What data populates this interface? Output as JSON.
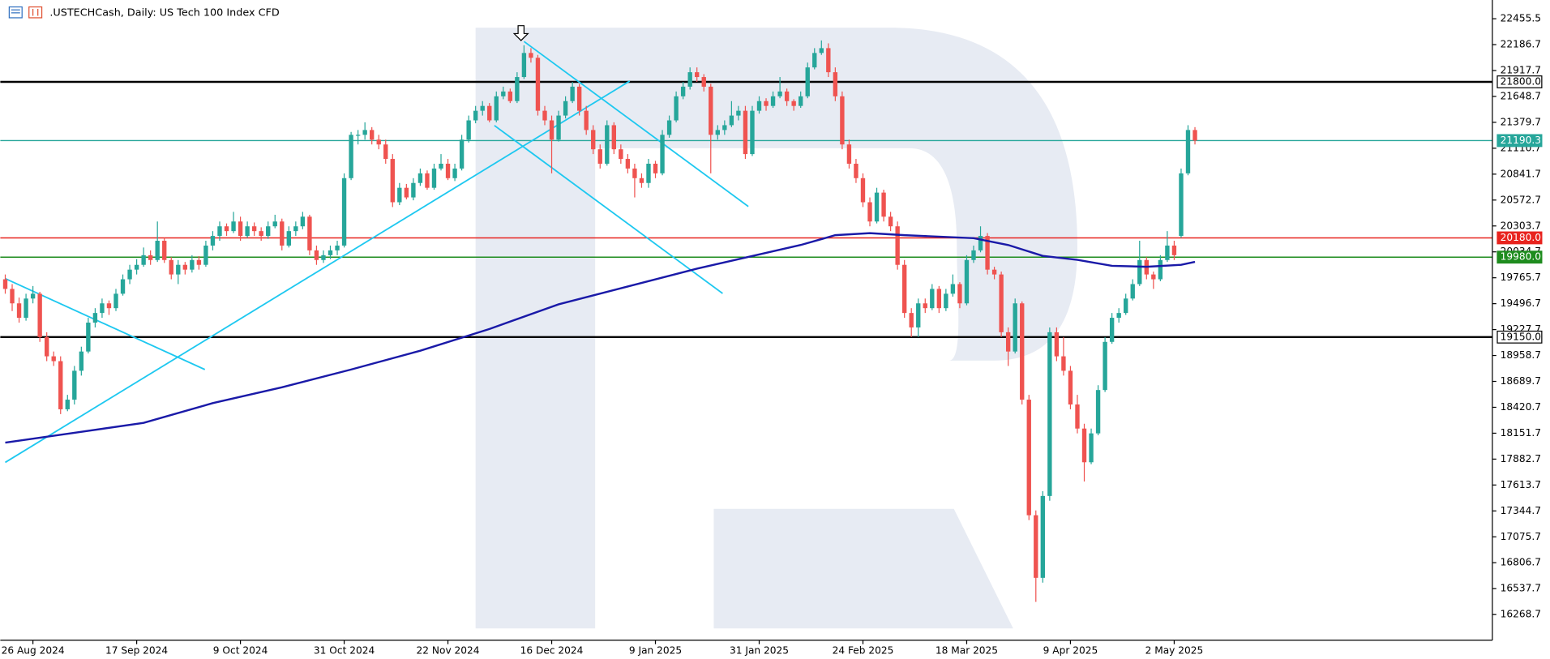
{
  "chart_data": {
    "type": "candlestick",
    "title": ".USTECHCash, Daily:  US Tech 100 Index CFD",
    "bull_color": "#26a69a",
    "bear_color": "#ef5350",
    "ylim": [
      16002,
      22650
    ],
    "yticks": [
      22455.5,
      22186.7,
      21917.7,
      21648.7,
      21379.7,
      21110.7,
      20841.7,
      20572.7,
      20303.7,
      20034.7,
      19765.7,
      19496.7,
      19227.7,
      18958.7,
      18689.7,
      18420.7,
      18151.7,
      17882.7,
      17613.7,
      17344.7,
      17075.7,
      16806.7,
      16537.7,
      16268.7
    ],
    "categories": [
      null,
      null,
      null,
      null,
      "26 Aug 2024",
      null,
      null,
      null,
      null,
      null,
      null,
      null,
      null,
      null,
      null,
      null,
      null,
      null,
      null,
      "17 Sep 2024",
      null,
      null,
      null,
      null,
      null,
      null,
      null,
      null,
      null,
      null,
      null,
      null,
      null,
      null,
      "9 Oct 2024",
      null,
      null,
      null,
      null,
      null,
      null,
      null,
      null,
      null,
      null,
      null,
      null,
      null,
      null,
      "31 Oct 2024",
      null,
      null,
      null,
      null,
      null,
      null,
      null,
      null,
      null,
      null,
      null,
      null,
      null,
      null,
      "22 Nov 2024",
      null,
      null,
      null,
      null,
      null,
      null,
      null,
      null,
      null,
      null,
      null,
      null,
      null,
      null,
      "16 Dec 2024",
      null,
      null,
      null,
      null,
      null,
      null,
      null,
      null,
      null,
      null,
      null,
      null,
      null,
      null,
      "9 Jan 2025",
      null,
      null,
      null,
      null,
      null,
      null,
      null,
      null,
      null,
      null,
      null,
      null,
      null,
      null,
      "31 Jan 2025",
      null,
      null,
      null,
      null,
      null,
      null,
      null,
      null,
      null,
      null,
      null,
      null,
      null,
      null,
      "24 Feb 2025",
      null,
      null,
      null,
      null,
      null,
      null,
      null,
      null,
      null,
      null,
      null,
      null,
      null,
      null,
      "18 Mar 2025",
      null,
      null,
      null,
      null,
      null,
      null,
      null,
      null,
      null,
      null,
      null,
      null,
      null,
      null,
      "9 Apr 2025",
      null,
      null,
      null,
      null,
      null,
      null,
      null,
      null,
      null,
      null,
      null,
      null,
      null,
      null,
      "2 May 2025",
      null,
      null,
      null
    ],
    "candles": [
      [
        19750,
        19800,
        19600,
        19650
      ],
      [
        19650,
        19700,
        19420,
        19500
      ],
      [
        19500,
        19560,
        19300,
        19350
      ],
      [
        19350,
        19600,
        19320,
        19550
      ],
      [
        19550,
        19680,
        19500,
        19600
      ],
      [
        19600,
        19620,
        19100,
        19150
      ],
      [
        19150,
        19200,
        18900,
        18950
      ],
      [
        18950,
        19000,
        18850,
        18900
      ],
      [
        18900,
        18950,
        18350,
        18400
      ],
      [
        18400,
        18550,
        18380,
        18500
      ],
      [
        18500,
        18850,
        18450,
        18800
      ],
      [
        18800,
        19050,
        18750,
        19000
      ],
      [
        19000,
        19350,
        18980,
        19300
      ],
      [
        19300,
        19450,
        19250,
        19400
      ],
      [
        19400,
        19550,
        19350,
        19500
      ],
      [
        19500,
        19530,
        19380,
        19450
      ],
      [
        19450,
        19650,
        19420,
        19600
      ],
      [
        19600,
        19800,
        19580,
        19750
      ],
      [
        19750,
        19900,
        19700,
        19850
      ],
      [
        19850,
        19960,
        19800,
        19900
      ],
      [
        19900,
        20080,
        19880,
        20000
      ],
      [
        20000,
        20050,
        19900,
        19950
      ],
      [
        19950,
        20350,
        19930,
        20150
      ],
      [
        20150,
        20180,
        19920,
        19950
      ],
      [
        19950,
        19980,
        19750,
        19800
      ],
      [
        19800,
        19950,
        19700,
        19900
      ],
      [
        19900,
        19930,
        19800,
        19850
      ],
      [
        19850,
        20000,
        19820,
        19950
      ],
      [
        19950,
        19990,
        19850,
        19900
      ],
      [
        19900,
        20150,
        19880,
        20100
      ],
      [
        20100,
        20250,
        20050,
        20200
      ],
      [
        20200,
        20350,
        20150,
        20300
      ],
      [
        20300,
        20330,
        20200,
        20250
      ],
      [
        20250,
        20450,
        20230,
        20350
      ],
      [
        20350,
        20400,
        20150,
        20200
      ],
      [
        20200,
        20350,
        20180,
        20300
      ],
      [
        20300,
        20340,
        20200,
        20250
      ],
      [
        20250,
        20290,
        20150,
        20200
      ],
      [
        20200,
        20350,
        20170,
        20300
      ],
      [
        20300,
        20420,
        20280,
        20350
      ],
      [
        20350,
        20380,
        20050,
        20100
      ],
      [
        20100,
        20300,
        20080,
        20250
      ],
      [
        20250,
        20350,
        20200,
        20300
      ],
      [
        20300,
        20450,
        20270,
        20400
      ],
      [
        20400,
        20420,
        20000,
        20050
      ],
      [
        20050,
        20100,
        19900,
        19950
      ],
      [
        19950,
        20050,
        19920,
        20000
      ],
      [
        20000,
        20100,
        19960,
        20050
      ],
      [
        20050,
        20150,
        20000,
        20100
      ],
      [
        20100,
        20850,
        20080,
        20800
      ],
      [
        20800,
        21280,
        20780,
        21250
      ],
      [
        21250,
        21300,
        21150,
        21250
      ],
      [
        21250,
        21380,
        21200,
        21300
      ],
      [
        21300,
        21330,
        21150,
        21200
      ],
      [
        21200,
        21250,
        21100,
        21150
      ],
      [
        21150,
        21200,
        20950,
        21000
      ],
      [
        21000,
        21050,
        20500,
        20550
      ],
      [
        20550,
        20750,
        20520,
        20700
      ],
      [
        20700,
        20740,
        20580,
        20600
      ],
      [
        20600,
        20800,
        20570,
        20750
      ],
      [
        20750,
        20900,
        20720,
        20850
      ],
      [
        20850,
        20880,
        20680,
        20700
      ],
      [
        20700,
        20950,
        20680,
        20900
      ],
      [
        20900,
        21050,
        20880,
        20950
      ],
      [
        20950,
        21000,
        20780,
        20800
      ],
      [
        20800,
        20950,
        20770,
        20900
      ],
      [
        20900,
        21250,
        20880,
        21200
      ],
      [
        21200,
        21450,
        21170,
        21400
      ],
      [
        21400,
        21550,
        21370,
        21500
      ],
      [
        21500,
        21600,
        21450,
        21550
      ],
      [
        21550,
        21580,
        21380,
        21400
      ],
      [
        21400,
        21700,
        21380,
        21650
      ],
      [
        21650,
        21750,
        21620,
        21700
      ],
      [
        21700,
        21730,
        21580,
        21600
      ],
      [
        21600,
        21900,
        21580,
        21850
      ],
      [
        21850,
        22180,
        21830,
        22100
      ],
      [
        22100,
        22150,
        22000,
        22050
      ],
      [
        22050,
        22080,
        21450,
        21500
      ],
      [
        21500,
        21550,
        21350,
        21400
      ],
      [
        21400,
        21450,
        20850,
        21200
      ],
      [
        21200,
        21500,
        21180,
        21450
      ],
      [
        21450,
        21650,
        21420,
        21600
      ],
      [
        21600,
        21800,
        21580,
        21750
      ],
      [
        21750,
        21780,
        21450,
        21500
      ],
      [
        21500,
        21550,
        21250,
        21300
      ],
      [
        21300,
        21350,
        21050,
        21100
      ],
      [
        21100,
        21150,
        20900,
        20950
      ],
      [
        20950,
        21400,
        20930,
        21350
      ],
      [
        21350,
        21380,
        21050,
        21100
      ],
      [
        21100,
        21150,
        20950,
        21000
      ],
      [
        21000,
        21050,
        20850,
        20900
      ],
      [
        20900,
        20950,
        20600,
        20800
      ],
      [
        20800,
        20850,
        20700,
        20750
      ],
      [
        20750,
        21000,
        20700,
        20950
      ],
      [
        20950,
        20980,
        20800,
        20850
      ],
      [
        20850,
        21300,
        20830,
        21250
      ],
      [
        21250,
        21450,
        21220,
        21400
      ],
      [
        21400,
        21700,
        21380,
        21650
      ],
      [
        21650,
        21800,
        21620,
        21750
      ],
      [
        21750,
        21950,
        21720,
        21900
      ],
      [
        21900,
        21950,
        21800,
        21850
      ],
      [
        21850,
        21880,
        21700,
        21750
      ],
      [
        21750,
        21780,
        20850,
        21250
      ],
      [
        21250,
        21350,
        21200,
        21300
      ],
      [
        21300,
        21400,
        21250,
        21350
      ],
      [
        21350,
        21600,
        21330,
        21450
      ],
      [
        21450,
        21550,
        21400,
        21500
      ],
      [
        21500,
        21550,
        21000,
        21050
      ],
      [
        21050,
        21550,
        21030,
        21500
      ],
      [
        21500,
        21650,
        21470,
        21600
      ],
      [
        21600,
        21630,
        21500,
        21550
      ],
      [
        21550,
        21700,
        21530,
        21650
      ],
      [
        21650,
        21850,
        21630,
        21700
      ],
      [
        21700,
        21730,
        21550,
        21600
      ],
      [
        21600,
        21620,
        21500,
        21550
      ],
      [
        21550,
        21700,
        21530,
        21650
      ],
      [
        21650,
        22000,
        21630,
        21950
      ],
      [
        21950,
        22150,
        21930,
        22100
      ],
      [
        22100,
        22230,
        22080,
        22150
      ],
      [
        22150,
        22200,
        21850,
        21900
      ],
      [
        21900,
        21950,
        21600,
        21650
      ],
      [
        21650,
        21700,
        21100,
        21150
      ],
      [
        21150,
        21200,
        20900,
        20950
      ],
      [
        20950,
        21000,
        20750,
        20800
      ],
      [
        20800,
        20850,
        20500,
        20550
      ],
      [
        20550,
        20600,
        20300,
        20350
      ],
      [
        20350,
        20700,
        20330,
        20650
      ],
      [
        20650,
        20680,
        20350,
        20400
      ],
      [
        20400,
        20450,
        20250,
        20300
      ],
      [
        20300,
        20350,
        19850,
        19900
      ],
      [
        19900,
        19950,
        19350,
        19400
      ],
      [
        19400,
        19450,
        19150,
        19250
      ],
      [
        19250,
        19550,
        19150,
        19500
      ],
      [
        19500,
        19550,
        19400,
        19450
      ],
      [
        19450,
        19700,
        19430,
        19650
      ],
      [
        19650,
        19680,
        19400,
        19450
      ],
      [
        19450,
        19650,
        19420,
        19600
      ],
      [
        19600,
        19800,
        19570,
        19700
      ],
      [
        19700,
        19720,
        19450,
        19500
      ],
      [
        19500,
        20000,
        19480,
        19950
      ],
      [
        19950,
        20100,
        19920,
        20050
      ],
      [
        20050,
        20300,
        20030,
        20200
      ],
      [
        20200,
        20230,
        19800,
        19850
      ],
      [
        19850,
        19880,
        19750,
        19800
      ],
      [
        19800,
        19830,
        19150,
        19200
      ],
      [
        19200,
        19250,
        18850,
        19000
      ],
      [
        19000,
        19550,
        18980,
        19500
      ],
      [
        19500,
        19520,
        18450,
        18500
      ],
      [
        18500,
        18550,
        17250,
        17300
      ],
      [
        17300,
        17350,
        16400,
        16650
      ],
      [
        16650,
        17550,
        16600,
        17500
      ],
      [
        17500,
        19250,
        17450,
        19200
      ],
      [
        19200,
        19250,
        18900,
        18950
      ],
      [
        18950,
        19150,
        18750,
        18800
      ],
      [
        18800,
        18850,
        18400,
        18450
      ],
      [
        18450,
        18550,
        18150,
        18200
      ],
      [
        18200,
        18250,
        17650,
        17850
      ],
      [
        17850,
        18200,
        17830,
        18150
      ],
      [
        18150,
        18650,
        18130,
        18600
      ],
      [
        18600,
        19150,
        18580,
        19100
      ],
      [
        19100,
        19400,
        19080,
        19350
      ],
      [
        19350,
        19450,
        19300,
        19400
      ],
      [
        19400,
        19600,
        19380,
        19550
      ],
      [
        19550,
        19750,
        19530,
        19700
      ],
      [
        19700,
        20150,
        19680,
        19950
      ],
      [
        19950,
        19980,
        19750,
        19800
      ],
      [
        19800,
        19830,
        19650,
        19750
      ],
      [
        19750,
        20000,
        19730,
        19950
      ],
      [
        19950,
        20250,
        19930,
        20100
      ],
      [
        20100,
        20150,
        19950,
        20000
      ],
      [
        20200,
        20900,
        20180,
        20850
      ],
      [
        20850,
        21350,
        20830,
        21300
      ],
      [
        21300,
        21330,
        21150,
        21190
      ]
    ],
    "ma": {
      "color": "#1a1aa8",
      "x": [
        0,
        10,
        20,
        30,
        40,
        50,
        60,
        70,
        80,
        90,
        100,
        110,
        115,
        120,
        125,
        130,
        140,
        145,
        150,
        155,
        160,
        165,
        170,
        172
      ],
      "values": [
        18054,
        18156,
        18259,
        18464,
        18628,
        18813,
        19008,
        19234,
        19490,
        19675,
        19860,
        20024,
        20106,
        20208,
        20229,
        20208,
        20177,
        20106,
        19993,
        19952,
        19890,
        19880,
        19900,
        19931
      ]
    },
    "levels": [
      {
        "value": 21800,
        "label": "21800.0",
        "color": "#000000"
      },
      {
        "value": 21190.3,
        "label": "21190.3",
        "color": "#26a69a"
      },
      {
        "value": 20180,
        "label": "20180.0",
        "color": "#e8231e"
      },
      {
        "value": 19980,
        "label": "19980.0",
        "color": "#1e8c1e"
      },
      {
        "value": 19150,
        "label": "19150.0",
        "color": "#000000"
      }
    ]
  }
}
